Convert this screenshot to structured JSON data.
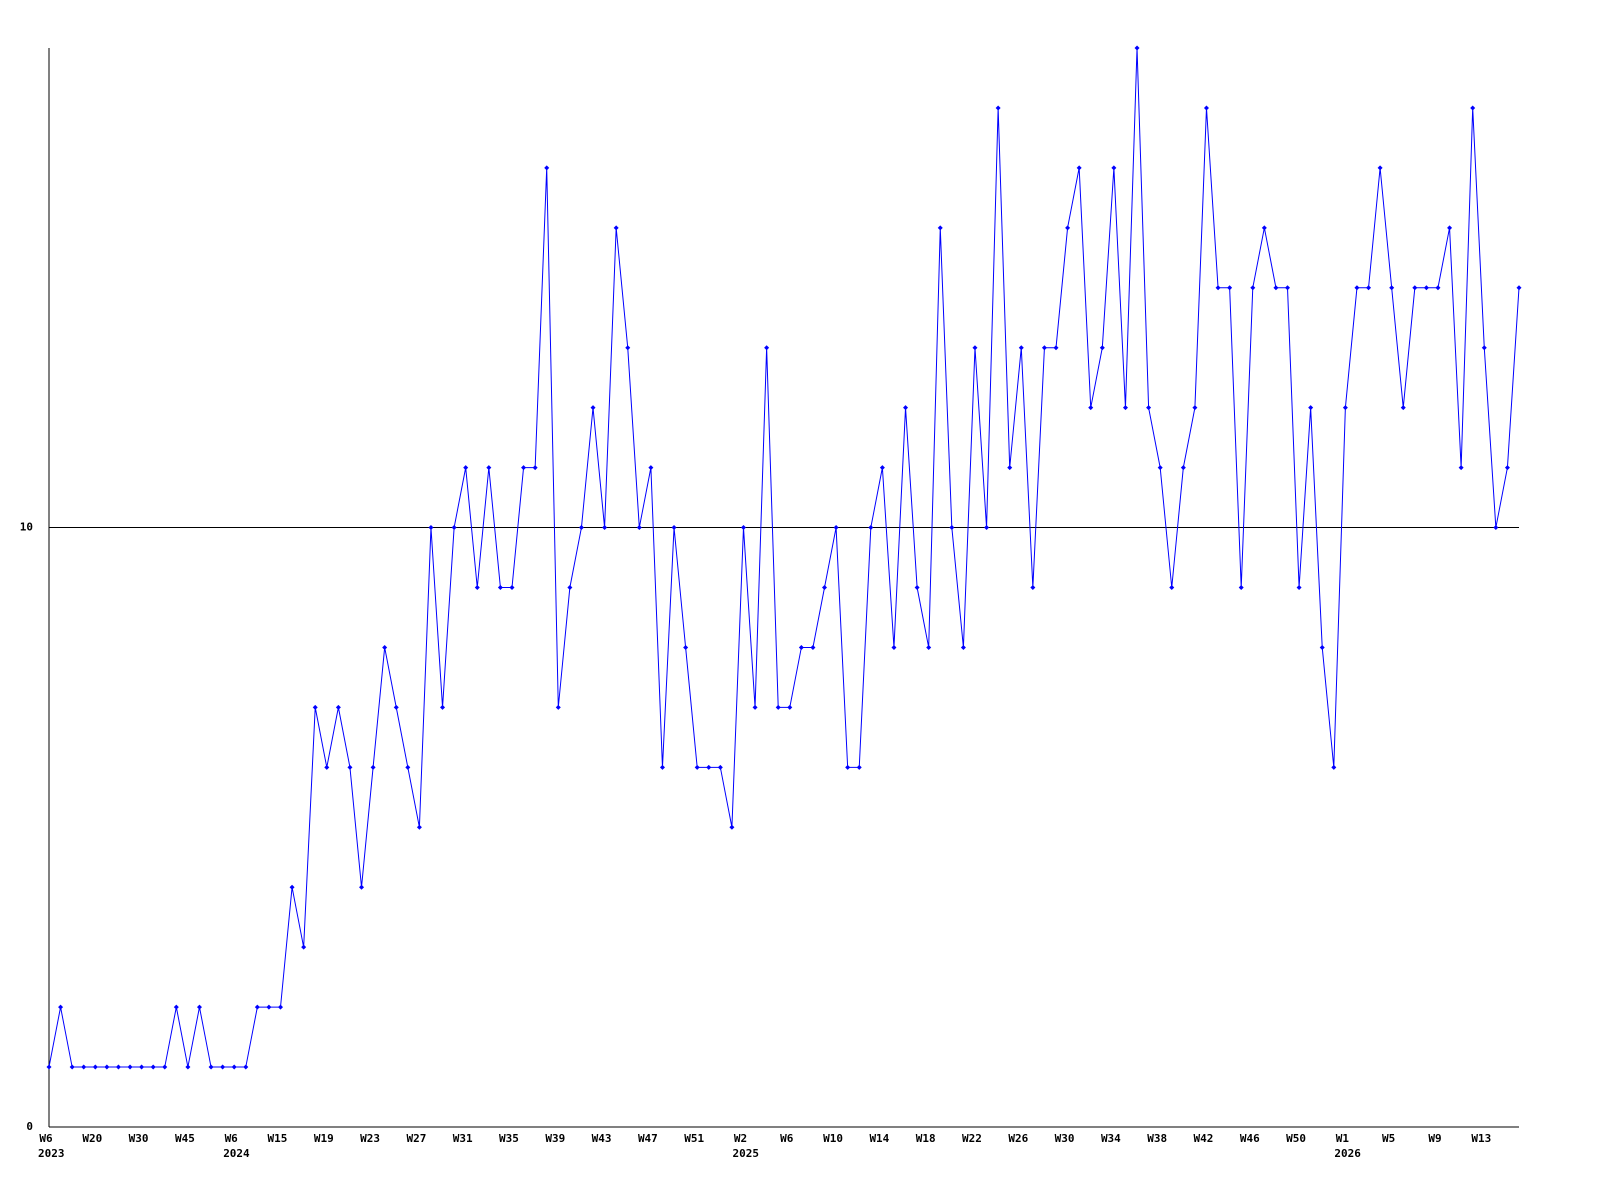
{
  "chart_data": {
    "type": "line",
    "categories": [
      "W6",
      null,
      null,
      null,
      "W20",
      null,
      null,
      null,
      "W30",
      null,
      null,
      null,
      "W45",
      null,
      null,
      null,
      "W6",
      null,
      null,
      null,
      "W15",
      null,
      null,
      null,
      "W19",
      null,
      null,
      null,
      "W23",
      null,
      null,
      null,
      "W27",
      null,
      null,
      null,
      "W31",
      null,
      null,
      null,
      "W35",
      null,
      null,
      null,
      "W39",
      null,
      null,
      null,
      "W43",
      null,
      null,
      null,
      "W47",
      null,
      null,
      null,
      "W51",
      null,
      null,
      null,
      "W2",
      null,
      null,
      null,
      "W6",
      null,
      null,
      null,
      "W10",
      null,
      null,
      null,
      "W14",
      null,
      null,
      null,
      "W18",
      null,
      null,
      null,
      "W22",
      null,
      null,
      null,
      "W26",
      null,
      null,
      null,
      "W30",
      null,
      null,
      null,
      "W34",
      null,
      null,
      null,
      "W38",
      null,
      null,
      null,
      "W42",
      null,
      null,
      null,
      "W46",
      null,
      null,
      null,
      "W50",
      null,
      null,
      null,
      "W1",
      null,
      null,
      null,
      "W5",
      null,
      null,
      null,
      "W9",
      null,
      null,
      null,
      "W13",
      null,
      null,
      null
    ],
    "category_years": [
      "2023",
      null,
      null,
      null,
      null,
      null,
      null,
      null,
      null,
      null,
      null,
      null,
      null,
      null,
      null,
      null,
      "2024",
      null,
      null,
      null,
      null,
      null,
      null,
      null,
      null,
      null,
      null,
      null,
      null,
      null,
      null,
      null,
      null,
      null,
      null,
      null,
      null,
      null,
      null,
      null,
      null,
      null,
      null,
      null,
      null,
      null,
      null,
      null,
      null,
      null,
      null,
      null,
      null,
      null,
      null,
      null,
      null,
      null,
      null,
      null,
      "2025",
      null,
      null,
      null,
      null,
      null,
      null,
      null,
      null,
      null,
      null,
      null,
      null,
      null,
      null,
      null,
      null,
      null,
      null,
      null,
      null,
      null,
      null,
      null,
      null,
      null,
      null,
      null,
      null,
      null,
      null,
      null,
      null,
      null,
      null,
      null,
      null,
      null,
      null,
      null,
      null,
      null,
      null,
      null,
      null,
      null,
      null,
      null,
      null,
      null,
      null,
      null,
      "2026",
      null,
      null,
      null,
      null,
      null,
      null,
      null,
      null,
      null,
      null,
      null,
      null,
      null,
      null,
      null
    ],
    "values": [
      1,
      2,
      1,
      1,
      1,
      1,
      1,
      1,
      1,
      1,
      1,
      2,
      1,
      2,
      1,
      1,
      1,
      1,
      2,
      2,
      2,
      4,
      3,
      7,
      6,
      7,
      6,
      4,
      6,
      8,
      7,
      6,
      5,
      10,
      7,
      10,
      11,
      9,
      11,
      9,
      9,
      11,
      11,
      16,
      7,
      9,
      10,
      12,
      10,
      15,
      13,
      10,
      11,
      6,
      10,
      8,
      6,
      6,
      6,
      5,
      10,
      7,
      13,
      7,
      7,
      8,
      8,
      9,
      10,
      6,
      6,
      10,
      11,
      8,
      12,
      9,
      8,
      15,
      10,
      8,
      13,
      10,
      17,
      11,
      13,
      9,
      13,
      13,
      15,
      16,
      12,
      13,
      16,
      12,
      18,
      12,
      11,
      9,
      11,
      12,
      17,
      14,
      14,
      9,
      14,
      15,
      14,
      14,
      9,
      12,
      8,
      6,
      12,
      14,
      14,
      16,
      14,
      12,
      14,
      14,
      14,
      15,
      11,
      17,
      13,
      10,
      11,
      14
    ],
    "color": "#0000ff",
    "ylim": [
      0,
      18
    ],
    "yticks": [
      0,
      10
    ],
    "grid": true
  }
}
